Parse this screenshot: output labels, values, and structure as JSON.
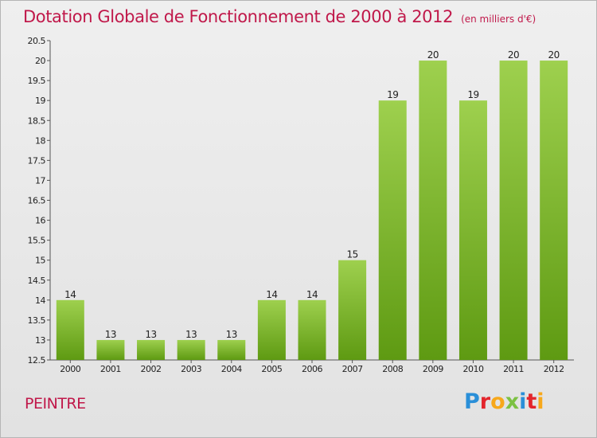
{
  "header": {
    "title": "Dotation Globale de Fonctionnement de 2000 à 2012",
    "subtitle": "(en milliers d'€)"
  },
  "commune": "PEINTRE",
  "logo": {
    "letters": [
      "P",
      "r",
      "o",
      "x",
      "i",
      "t",
      "i"
    ],
    "colors": [
      "#2a8fd8",
      "#e3252c",
      "#f7a81b",
      "#7cc142",
      "#2a8fd8",
      "#e3252c",
      "#f7a81b"
    ]
  },
  "colors": {
    "bar_light": "#9ed04e",
    "bar_dark": "#5e9a12",
    "title": "#c0184a"
  },
  "chart_data": {
    "type": "bar",
    "title": "Dotation Globale de Fonctionnement de 2000 à 2012",
    "subtitle": "(en milliers d'€)",
    "categories": [
      "2000",
      "2001",
      "2002",
      "2003",
      "2004",
      "2005",
      "2006",
      "2007",
      "2008",
      "2009",
      "2010",
      "2011",
      "2012"
    ],
    "values": [
      14,
      13,
      13,
      13,
      13,
      14,
      14,
      15,
      19,
      20,
      19,
      20,
      20
    ],
    "ylim": [
      12.5,
      20.5
    ],
    "yticks": [
      "12.5",
      "13",
      "13.5",
      "14",
      "14.5",
      "15",
      "15.5",
      "16",
      "16.5",
      "17",
      "17.5",
      "18",
      "18.5",
      "19",
      "19.5",
      "20",
      "20.5"
    ],
    "grid": false,
    "xlabel": "",
    "ylabel": ""
  }
}
